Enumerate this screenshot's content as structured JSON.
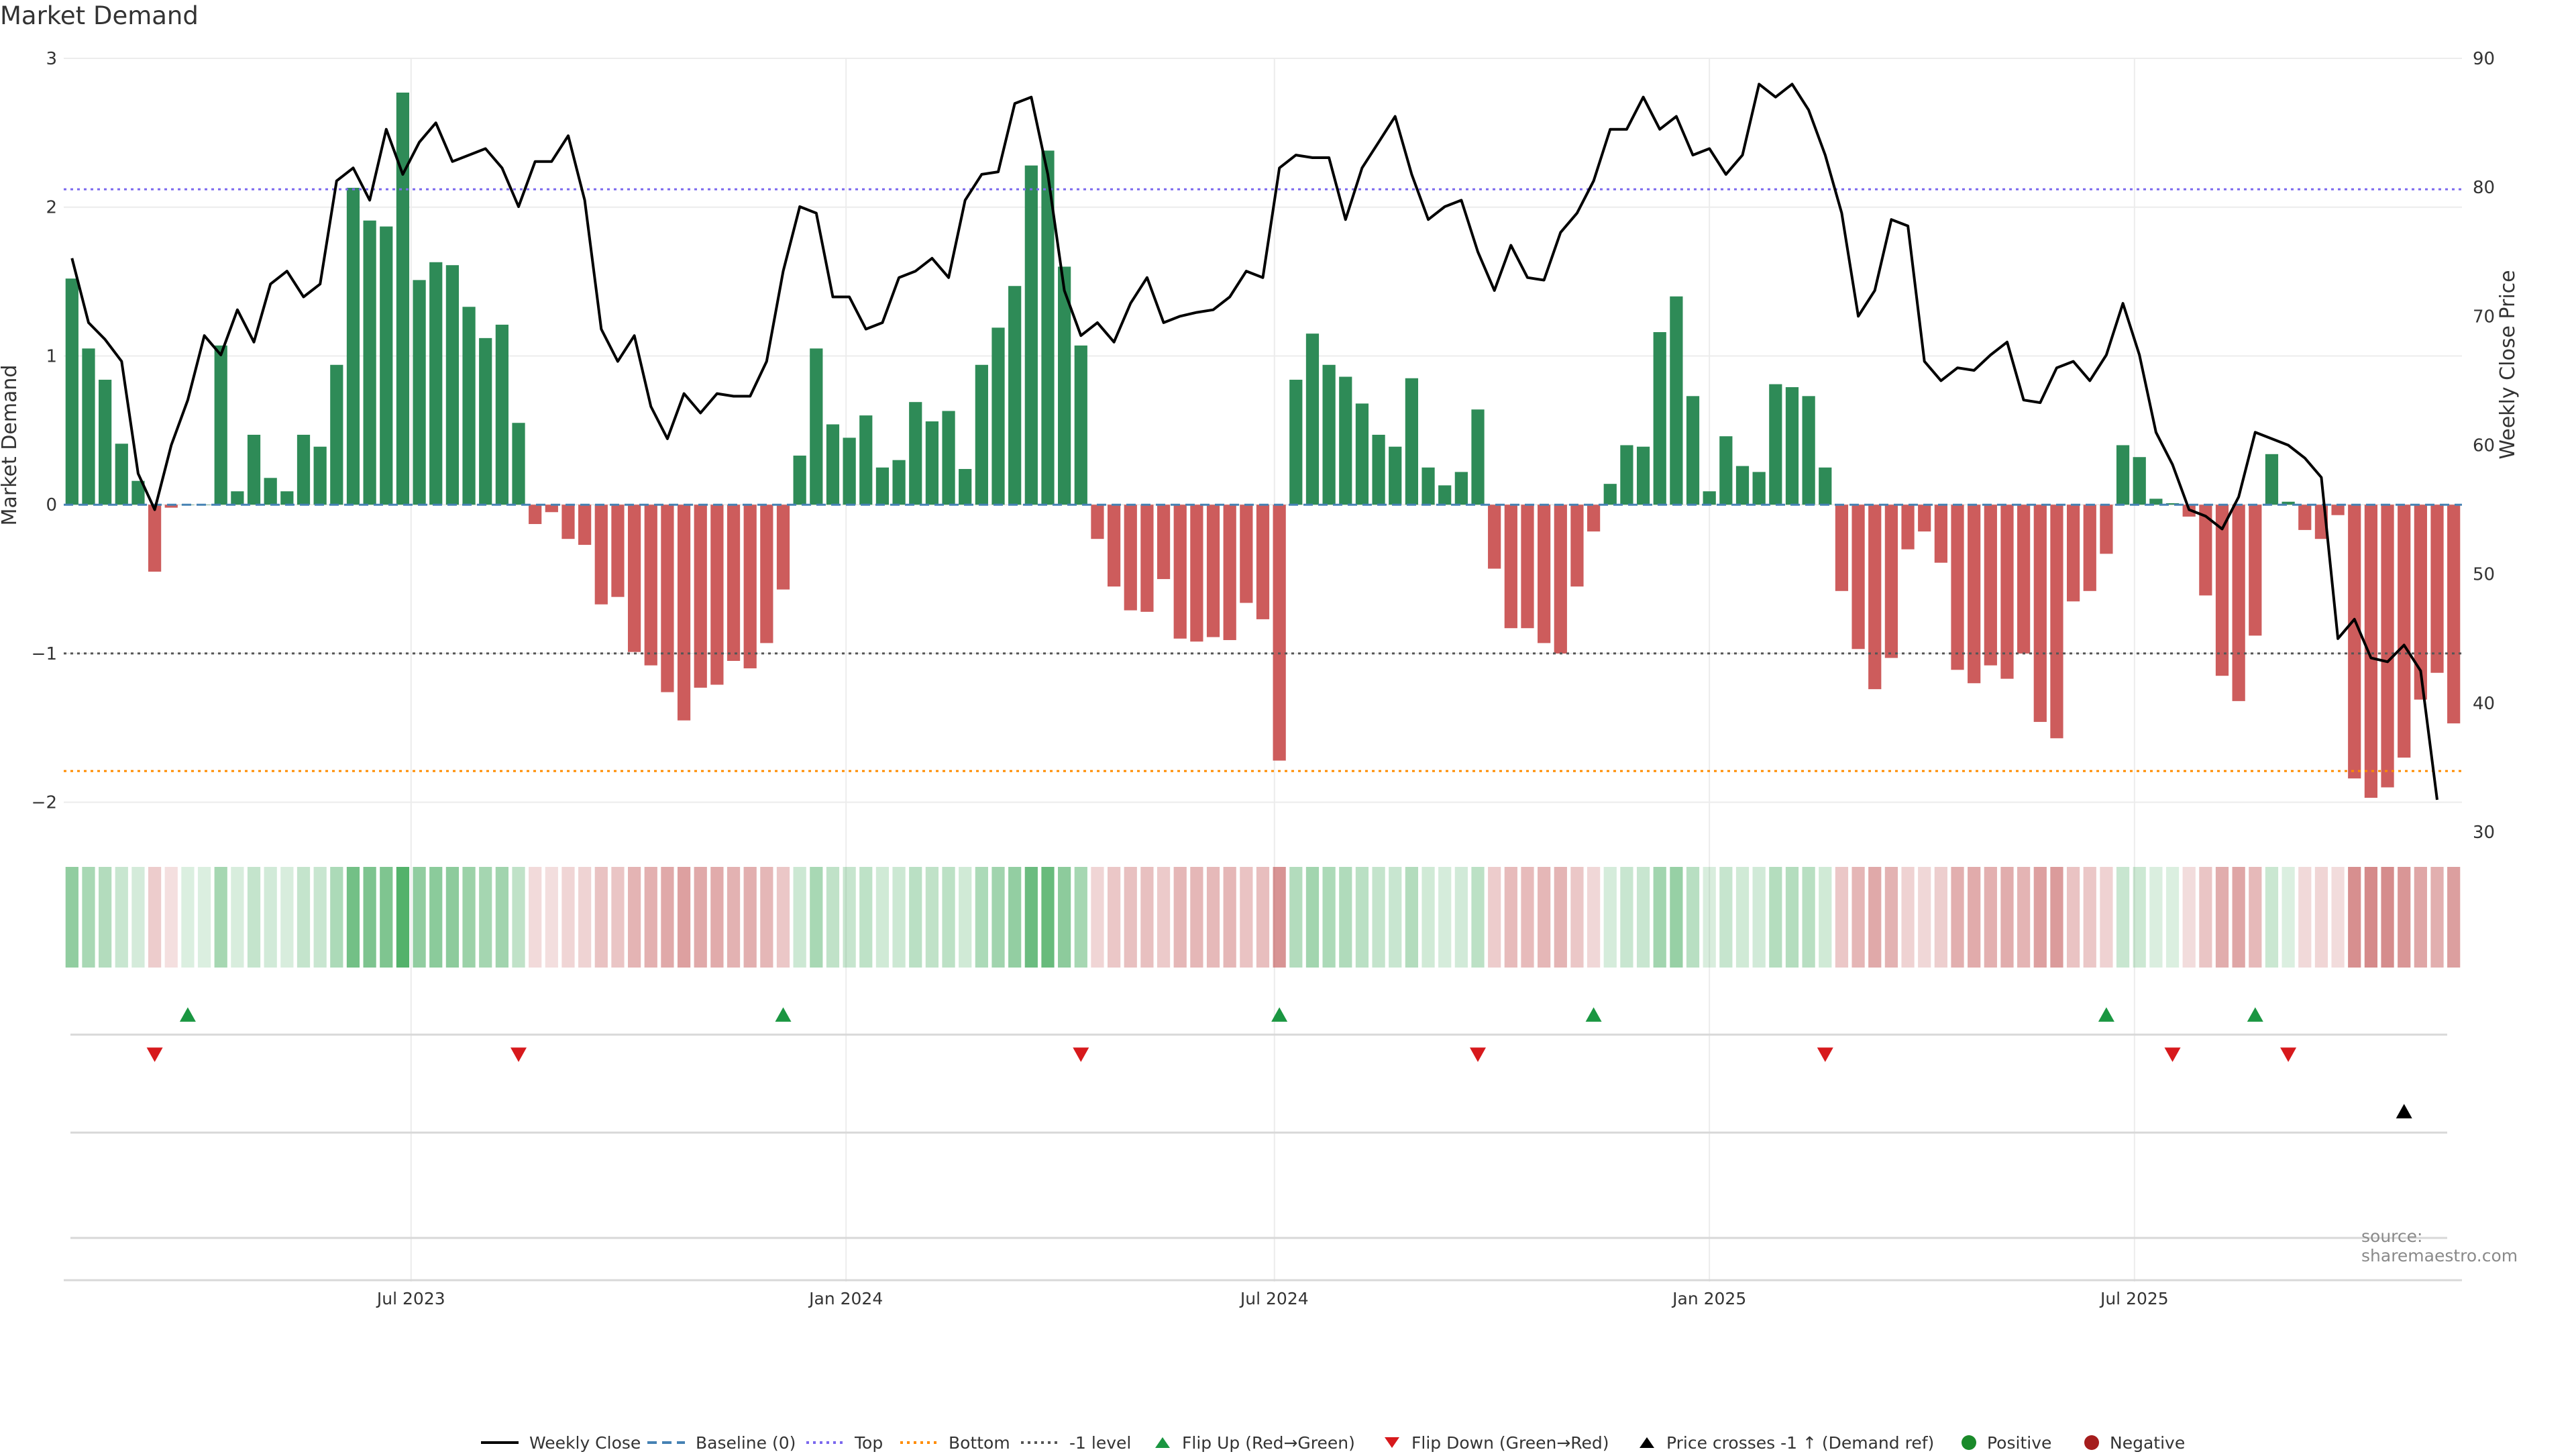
{
  "title": "Market Demand",
  "source": "source: sharemaestro.com",
  "colors": {
    "pos": "#2e8b57",
    "neg": "#cd5c5c",
    "close": "#000000",
    "top": "#7b68ee",
    "bottom": "#ff8c00",
    "minus1": "#555555",
    "baseline": "#4682b4",
    "flip_up": "#1a9641",
    "flip_down": "#d7191c",
    "cross": "#000000",
    "positive_dot": "#1a8a2a",
    "negative_dot": "#a51d1d"
  },
  "legend": [
    {
      "label": "Weekly Close",
      "kind": "line",
      "color": "#000000"
    },
    {
      "label": "Baseline (0)",
      "kind": "dash",
      "color": "#4682b4"
    },
    {
      "label": "Top",
      "kind": "dot",
      "color": "#7b68ee"
    },
    {
      "label": "Bottom",
      "kind": "dot",
      "color": "#ff8c00"
    },
    {
      "label": "-1 level",
      "kind": "dot",
      "color": "#555555"
    },
    {
      "label": "Flip Up (Red→Green)",
      "kind": "tri-up",
      "color": "#1a9641"
    },
    {
      "label": "Flip Down (Green→Red)",
      "kind": "tri-down",
      "color": "#d7191c"
    },
    {
      "label": "Price crosses -1 ↑ (Demand ref)",
      "kind": "tri-up",
      "color": "#000000"
    },
    {
      "label": "Positive",
      "kind": "circle",
      "color": "#1a8a2a"
    },
    {
      "label": "Negative",
      "kind": "circle",
      "color": "#a51d1d"
    }
  ],
  "chart_data": {
    "type": "bar",
    "title": "Market Demand",
    "ylabel": "Market Demand",
    "y2label": "Weekly Close Price",
    "ylim": [
      -2.2,
      3.0
    ],
    "y2lim": [
      30,
      90
    ],
    "yticks": [
      -2,
      -1,
      0,
      1,
      2,
      3
    ],
    "y2ticks": [
      30,
      40,
      50,
      60,
      70,
      80,
      90
    ],
    "xticks": [
      {
        "label": "Jul 2023",
        "index": 20.5
      },
      {
        "label": "Jan 2024",
        "index": 46.8
      },
      {
        "label": "Jul 2024",
        "index": 72.7
      },
      {
        "label": "Jan 2025",
        "index": 99.0
      },
      {
        "label": "Jul 2025",
        "index": 124.7
      }
    ],
    "reference_lines": {
      "baseline": 0,
      "top": 2.12,
      "bottom": -1.79,
      "minus_one": -1
    },
    "demand": [
      1.52,
      1.05,
      0.84,
      0.41,
      0.16,
      -0.45,
      -0.02,
      0,
      0,
      1.07,
      0.09,
      0.47,
      0.18,
      0.09,
      0.47,
      0.39,
      0.94,
      2.13,
      1.91,
      1.87,
      2.77,
      1.51,
      1.63,
      1.61,
      1.33,
      1.12,
      1.21,
      0.55,
      -0.13,
      -0.05,
      -0.23,
      -0.27,
      -0.67,
      -0.62,
      -0.99,
      -1.08,
      -1.26,
      -1.45,
      -1.23,
      -1.21,
      -1.05,
      -1.1,
      -0.93,
      -0.57,
      0.33,
      1.05,
      0.54,
      0.45,
      0.6,
      0.25,
      0.3,
      0.69,
      0.56,
      0.63,
      0.24,
      0.94,
      1.19,
      1.47,
      2.28,
      2.38,
      1.6,
      1.07,
      -0.23,
      -0.55,
      -0.71,
      -0.72,
      -0.5,
      -0.9,
      -0.92,
      -0.89,
      -0.91,
      -0.66,
      -0.77,
      -1.72,
      0.84,
      1.15,
      0.94,
      0.86,
      0.68,
      0.47,
      0.39,
      0.85,
      0.25,
      0.13,
      0.22,
      0.64,
      -0.43,
      -0.83,
      -0.83,
      -0.93,
      -1.0,
      -0.55,
      -0.18,
      0.14,
      0.4,
      0.39,
      1.16,
      1.4,
      0.73,
      0.09,
      0.46,
      0.26,
      0.22,
      0.81,
      0.79,
      0.73,
      0.25,
      -0.58,
      -0.97,
      -1.24,
      -1.03,
      -0.3,
      -0.18,
      -0.39,
      -1.11,
      -1.2,
      -1.08,
      -1.17,
      -1.0,
      -1.46,
      -1.57,
      -0.65,
      -0.58,
      -0.33,
      0.4,
      0.32,
      0.04,
      0.01,
      -0.08,
      -0.61,
      -1.15,
      -1.32,
      -0.88,
      0.34,
      0.02,
      -0.17,
      -0.23,
      -0.07,
      -1.84,
      -1.97,
      -1.9,
      -1.7,
      -1.31,
      -1.13,
      -1.47
    ],
    "weekly_close": [
      74.5,
      69.5,
      68.2,
      66.5,
      57.8,
      55.0,
      60.0,
      63.5,
      68.5,
      67.0,
      70.5,
      68.0,
      72.5,
      73.5,
      71.5,
      72.5,
      80.5,
      81.5,
      79.0,
      84.5,
      81.0,
      83.5,
      85.0,
      82.0,
      82.5,
      83.0,
      81.5,
      78.5,
      82.0,
      82.0,
      84.0,
      79.0,
      69.0,
      66.5,
      68.5,
      63.0,
      60.5,
      64.0,
      62.5,
      64.0,
      63.8,
      63.8,
      66.5,
      73.5,
      78.5,
      78.0,
      71.5,
      71.5,
      69.0,
      69.5,
      73.0,
      73.5,
      74.5,
      73.0,
      79.0,
      81.0,
      81.2,
      86.5,
      87.0,
      81.0,
      72.0,
      68.5,
      69.5,
      68.0,
      71.0,
      73.0,
      69.5,
      70.0,
      70.3,
      70.5,
      71.5,
      73.5,
      73.0,
      81.5,
      82.5,
      82.3,
      82.3,
      77.5,
      81.5,
      83.5,
      85.5,
      81.0,
      77.5,
      78.5,
      79.0,
      75.0,
      72.0,
      75.5,
      73.0,
      72.8,
      76.5,
      78.0,
      80.5,
      84.5,
      84.5,
      87.0,
      84.5,
      85.5,
      82.5,
      83.0,
      81.0,
      82.5,
      88.0,
      87.0,
      88.0,
      86.0,
      82.5,
      78.0,
      70.0,
      72.0,
      77.5,
      77.0,
      66.5,
      65.0,
      66.0,
      65.8,
      67.0,
      68.0,
      63.5,
      63.3,
      66.0,
      66.5,
      65.0,
      67.0,
      71.0,
      67.0,
      61.0,
      58.5,
      55.0,
      54.5,
      53.5,
      56.0,
      61.0,
      60.5,
      60.0,
      59.0,
      57.5,
      45.0,
      46.5,
      43.5,
      43.2,
      44.5,
      42.5,
      32.5
    ],
    "flip_up_index": [
      7,
      43,
      73,
      92,
      123,
      132
    ],
    "flip_down_index": [
      5,
      27,
      61,
      85,
      106,
      127,
      134
    ],
    "price_cross_index": [
      141
    ],
    "band_intensity_note": "Heat band below the main plot colors each week green (positive) or red (negative) with opacity proportional to |demand|."
  }
}
